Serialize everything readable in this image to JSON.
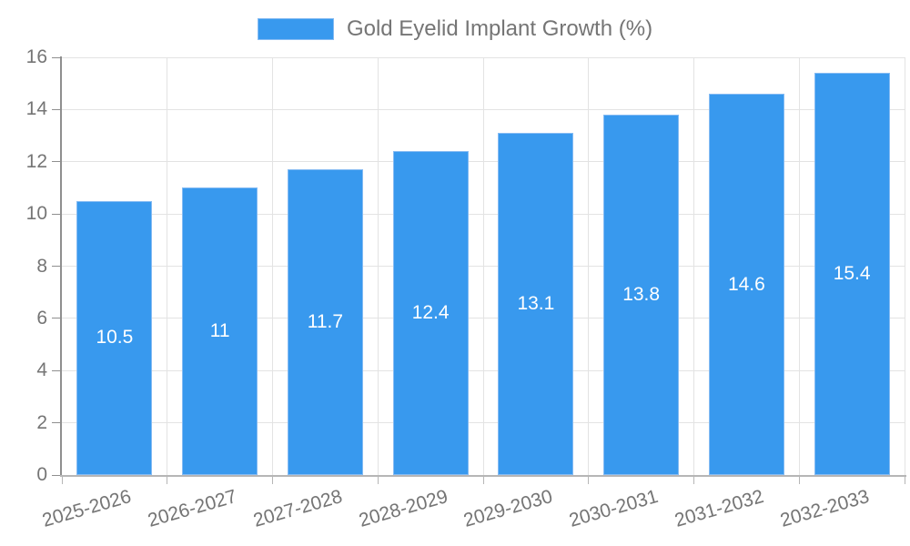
{
  "colors": {
    "background": "#ffffff",
    "bar": "#3899ee",
    "bar_border": "#85bbf3",
    "grid": "#e3e3e3",
    "axis_y": "#8f8f8f",
    "axis_x": "#b6b6b6",
    "tick_label": "#757575",
    "legend_text": "#757575",
    "value_label": "#ffffff"
  },
  "chart_data": {
    "type": "bar",
    "title": "",
    "legend": {
      "position": "top",
      "label": "Gold Eyelid Implant Growth (%)"
    },
    "categories": [
      "2025-2026",
      "2026-2027",
      "2027-2028",
      "2028-2029",
      "2029-2030",
      "2030-2031",
      "2031-2032",
      "2032-2033"
    ],
    "series": [
      {
        "name": "Gold Eyelid Implant Growth (%)",
        "values": [
          10.5,
          11,
          11.7,
          12.4,
          13.1,
          13.8,
          14.6,
          15.4
        ]
      }
    ],
    "bar_value_labels": [
      "10.5",
      "11",
      "11.7",
      "12.4",
      "13.1",
      "13.8",
      "14.6",
      "15.4"
    ],
    "xlabel": "",
    "ylabel": "",
    "ylim": [
      0,
      16
    ],
    "yticks": [
      0,
      2,
      4,
      6,
      8,
      10,
      12,
      14,
      16
    ],
    "grid": true,
    "x_label_rotation_deg": -16
  }
}
